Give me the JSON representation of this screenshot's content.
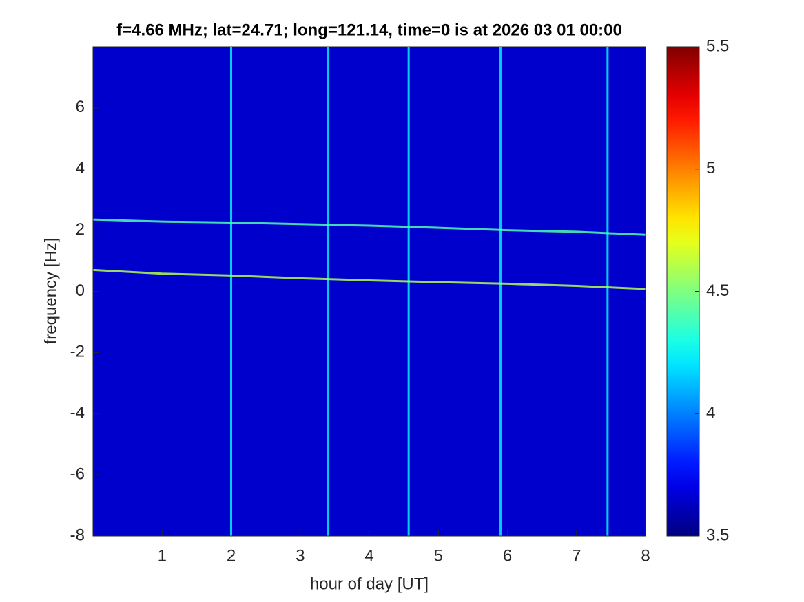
{
  "chart_data": {
    "type": "spectrogram",
    "title": "f=4.66 MHz;  lat=24.71; long=121.14, time=0 is at 2026 03 01 00:00",
    "xlabel": "hour of day [UT]",
    "ylabel": "frequency [Hz]",
    "xlim": [
      0,
      8
    ],
    "ylim": [
      -8,
      8
    ],
    "xticks": [
      1,
      2,
      3,
      4,
      5,
      6,
      7,
      8
    ],
    "yticks": [
      -8,
      -6,
      -4,
      -2,
      0,
      2,
      4,
      6
    ],
    "colormap": "jet",
    "clim": [
      3.5,
      5.5
    ],
    "cticks": [
      3.5,
      4,
      4.5,
      5,
      5.5
    ],
    "background_level": 3.65,
    "bursts": {
      "x": [
        2.0,
        3.4,
        4.57,
        5.9,
        7.45
      ],
      "level": 4.25
    },
    "series": [
      {
        "x": [
          0,
          1,
          2,
          3,
          4,
          5,
          6,
          7,
          8
        ],
        "values": [
          2.35,
          2.28,
          2.25,
          2.2,
          2.15,
          2.08,
          2.0,
          1.95,
          1.85
        ],
        "level": 4.4
      },
      {
        "x": [
          0,
          1,
          2,
          3,
          4,
          5,
          6,
          7,
          8
        ],
        "values": [
          0.7,
          0.58,
          0.52,
          0.43,
          0.36,
          0.3,
          0.25,
          0.18,
          0.08
        ],
        "level": 4.6
      }
    ]
  }
}
